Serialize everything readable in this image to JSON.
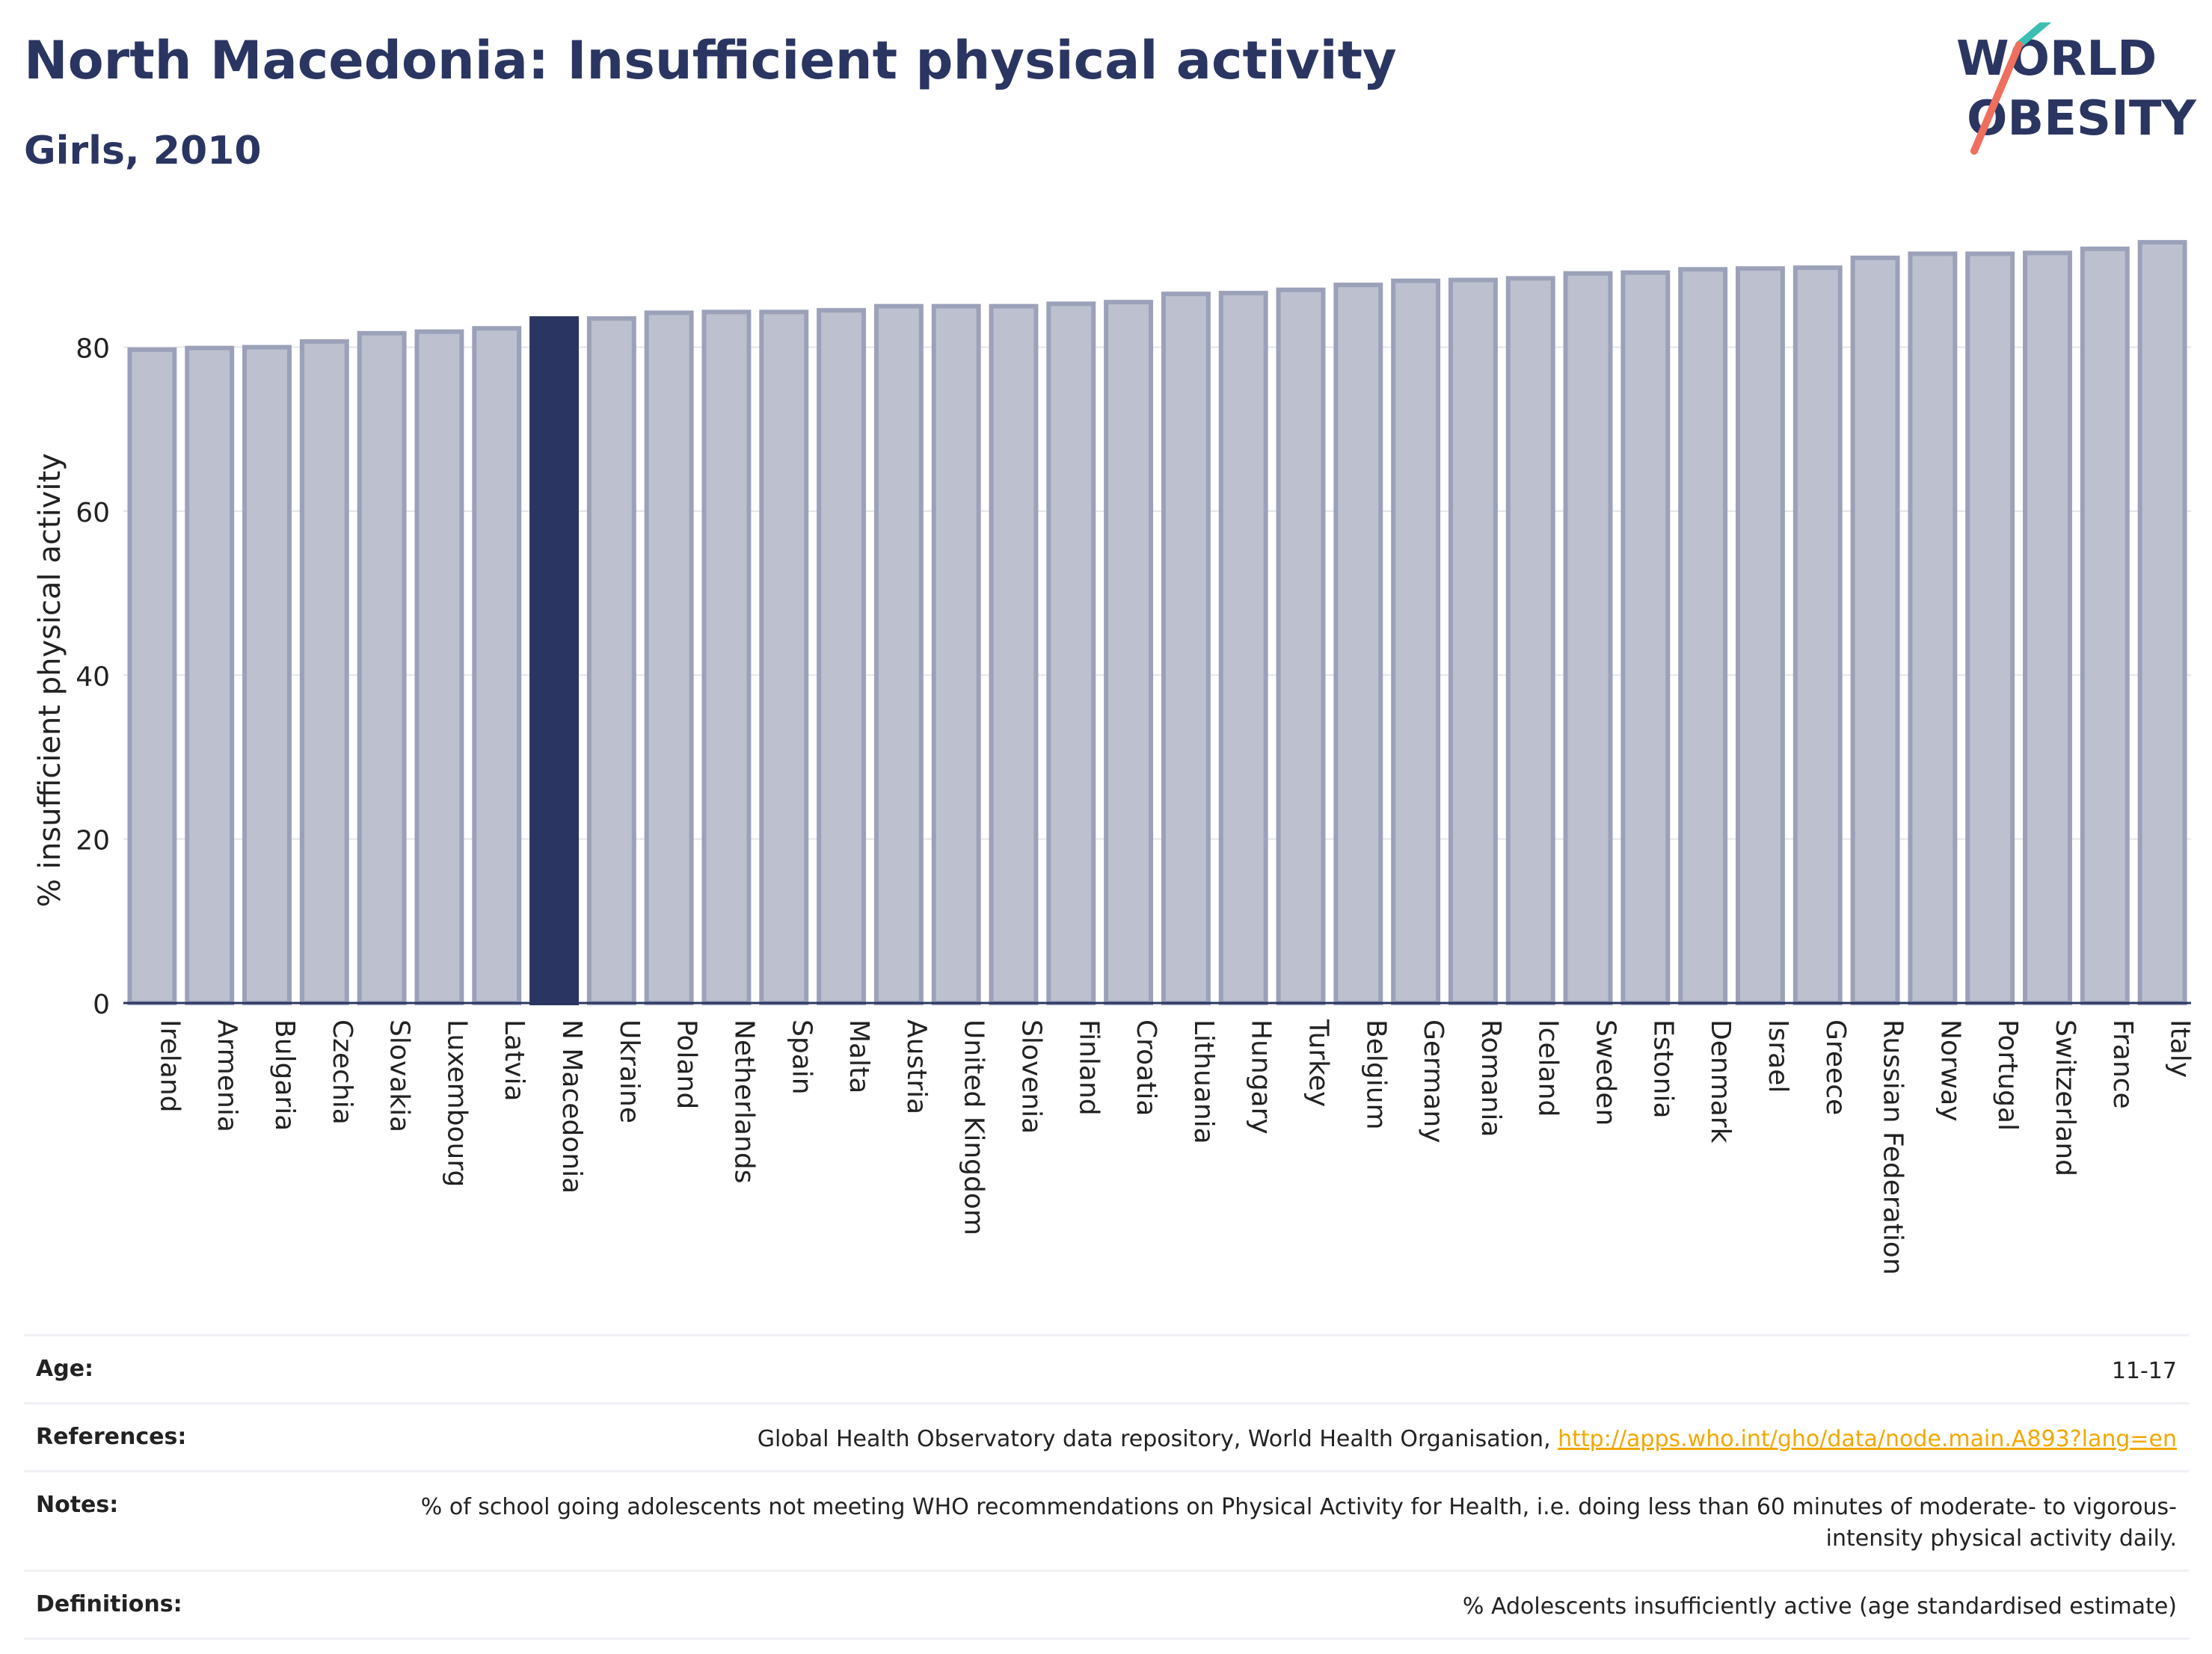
{
  "header": {
    "title": "North Macedonia: Insufficient physical activity",
    "subtitle": "Girls, 2010"
  },
  "logo": {
    "line1": "WORLD",
    "line2": "OBESITY",
    "colors": {
      "text": "#2a3561",
      "teal": "#3cbfb3",
      "coral": "#ef6f5e"
    }
  },
  "chart_data": {
    "type": "bar",
    "title": "North Macedonia: Insufficient physical activity",
    "subtitle": "Girls, 2010",
    "xlabel": "",
    "ylabel": "% insufficient physical activity",
    "ylim": [
      0,
      95
    ],
    "yticks": [
      0,
      20,
      40,
      60,
      80
    ],
    "grid": true,
    "highlight": "N Macedonia",
    "colors": {
      "bar": "#bcc0cf",
      "bar_edge": "#9ba1b8",
      "highlight": "#2a3561",
      "axis": "#2a3561",
      "grid": "#e3e5ec"
    },
    "categories": [
      "Ireland",
      "Armenia",
      "Bulgaria",
      "Czechia",
      "Slovakia",
      "Luxembourg",
      "Latvia",
      "N Macedonia",
      "Ukraine",
      "Poland",
      "Netherlands",
      "Spain",
      "Malta",
      "Austria",
      "United Kingdom",
      "Slovenia",
      "Finland",
      "Croatia",
      "Lithuania",
      "Hungary",
      "Turkey",
      "Belgium",
      "Germany",
      "Romania",
      "Iceland",
      "Sweden",
      "Estonia",
      "Denmark",
      "Israel",
      "Greece",
      "Russian Federation",
      "Norway",
      "Portugal",
      "Switzerland",
      "France",
      "Italy"
    ],
    "values": [
      79.7,
      79.9,
      80.0,
      80.7,
      81.7,
      81.9,
      82.3,
      83.5,
      83.5,
      84.2,
      84.3,
      84.3,
      84.5,
      85.0,
      85.0,
      85.0,
      85.3,
      85.5,
      86.5,
      86.6,
      87.0,
      87.6,
      88.1,
      88.2,
      88.4,
      89.0,
      89.1,
      89.5,
      89.6,
      89.7,
      90.9,
      91.4,
      91.4,
      91.5,
      92.0,
      92.8
    ]
  },
  "meta": {
    "rows": [
      {
        "label": "Age:",
        "value": "11-17"
      },
      {
        "label": "References:",
        "value": "Global Health Observatory data repository, World Health Organisation, ",
        "link": "http://apps.who.int/gho/data/node.main.A893?lang=en"
      },
      {
        "label": "Notes:",
        "value": "% of school going adolescents not meeting WHO recommendations on Physical Activity for Health, i.e. doing less than 60 minutes of moderate- to vigorous-intensity physical activity daily."
      },
      {
        "label": "Definitions:",
        "value": "% Adolescents insufficiently active (age standardised estimate)"
      }
    ]
  }
}
